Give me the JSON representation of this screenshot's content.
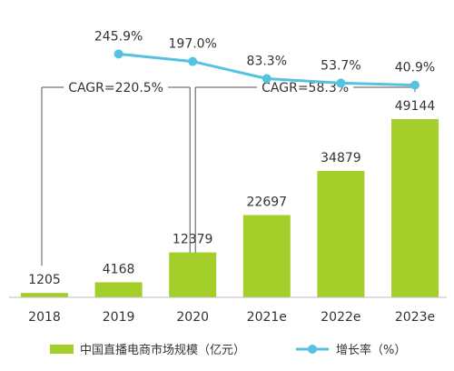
{
  "chart_data": {
    "type": "bar",
    "categories": [
      "2018",
      "2019",
      "2020",
      "2021e",
      "2022e",
      "2023e"
    ],
    "series": [
      {
        "name": "中国直播电商市场规模（亿元）",
        "type": "bar",
        "values": [
          1205,
          4168,
          12379,
          22697,
          34879,
          49144
        ],
        "labels": [
          "1205",
          "4168",
          "12379",
          "22697",
          "34879",
          "49144"
        ]
      },
      {
        "name": "增长率（%）",
        "type": "line",
        "values": [
          245.9,
          197.0,
          83.3,
          53.7,
          40.9
        ],
        "labels": [
          "245.9%",
          "197.0%",
          "83.3%",
          "53.7%",
          "40.9%"
        ],
        "x": [
          "2019",
          "2020",
          "2021e",
          "2022e",
          "2023e"
        ]
      }
    ],
    "annotations": [
      {
        "text": "CAGR=220.5%",
        "from": "2018",
        "to": "2020"
      },
      {
        "text": "CAGR=58.3%",
        "from": "2020",
        "to": "2023e"
      }
    ],
    "ylim": [
      0,
      55000
    ],
    "grid": false,
    "legend_position": "bottom",
    "colors": {
      "bar": "#a4cf2b",
      "line": "#55c2e0",
      "bracket": "#555555"
    }
  }
}
